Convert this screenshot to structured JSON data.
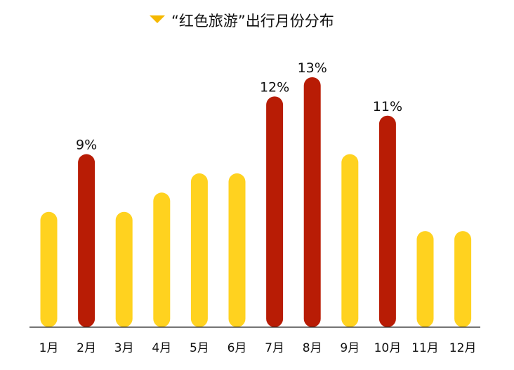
{
  "chart_data": {
    "type": "bar",
    "title": "“红色旅游”出行月份分布",
    "xlabel": "",
    "ylabel": "",
    "categories": [
      "1月",
      "2月",
      "3月",
      "4月",
      "5月",
      "6月",
      "7月",
      "8月",
      "9月",
      "10月",
      "11月",
      "12月"
    ],
    "values": [
      6,
      9,
      6,
      7,
      8,
      8,
      12,
      13,
      9,
      11,
      5,
      5
    ],
    "data_labels": [
      "",
      "9%",
      "",
      "",
      "",
      "",
      "12%",
      "13%",
      "",
      "11%",
      "",
      ""
    ],
    "highlight": [
      false,
      true,
      false,
      false,
      false,
      false,
      true,
      true,
      false,
      true,
      false,
      false
    ],
    "ylim": [
      0,
      13
    ],
    "unit": "%",
    "grid": false,
    "legend_position": "top-center",
    "colors": {
      "normal": "#FFD21F",
      "highlight": "#B81C05",
      "axis": "#222222",
      "text": "#111111",
      "legend_marker": "#F5B800"
    }
  }
}
